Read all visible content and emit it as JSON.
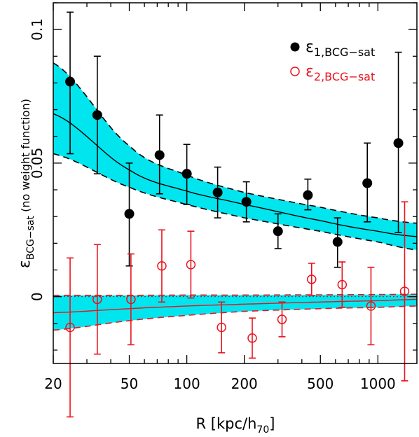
{
  "chart_data": {
    "type": "scatter",
    "xlabel_main": "R [kpc/h",
    "xlabel_sub": "70",
    "xlabel_end": "]",
    "ylabel_main": "ε",
    "ylabel_sub": "BCG−sat",
    "ylabel_end": " (no weight function)",
    "x_scale": "log",
    "xlim": [
      20,
      1600
    ],
    "ylim": [
      -0.025,
      0.11
    ],
    "x_ticks": [
      20,
      50,
      100,
      200,
      500,
      1000
    ],
    "x_tick_labels": [
      "20",
      "50",
      "100",
      "200",
      "500",
      "1000"
    ],
    "y_ticks": [
      0,
      0.05,
      0.1
    ],
    "y_tick_labels": [
      "0",
      "0.05",
      "0.1"
    ],
    "legend_position": "top-right",
    "series": [
      {
        "name": "ε",
        "name_sub": "1,BCG−sat",
        "color": "#000000",
        "marker": "filled-circle",
        "x": [
          24.5,
          34,
          50,
          72,
          100,
          145,
          205,
          300,
          430,
          615,
          880,
          1280
        ],
        "y": [
          0.0805,
          0.068,
          0.031,
          0.053,
          0.046,
          0.039,
          0.0355,
          0.0245,
          0.038,
          0.0205,
          0.0425,
          0.0575
        ],
        "err_low": [
          0.027,
          0.022,
          0.0195,
          0.0145,
          0.0115,
          0.0095,
          0.0075,
          0.0065,
          0.0055,
          0.0095,
          0.0145,
          0.0335
        ],
        "err_high": [
          0.026,
          0.022,
          0.019,
          0.015,
          0.011,
          0.0095,
          0.0075,
          0.0065,
          0.006,
          0.009,
          0.015,
          0.034
        ]
      },
      {
        "name": "ε",
        "name_sub": "2,BCG−sat",
        "color": "#e8141e",
        "marker": "open-circle",
        "x": [
          24.5,
          34,
          51,
          74,
          105,
          152,
          220,
          315,
          450,
          650,
          920,
          1380
        ],
        "y": [
          -0.0115,
          -0.001,
          -0.001,
          0.0115,
          0.012,
          -0.0115,
          -0.0155,
          -0.0085,
          0.0065,
          0.0045,
          -0.0035,
          0.002
        ],
        "err_low": [
          0.0335,
          0.0205,
          0.017,
          0.0135,
          0.0125,
          0.0095,
          0.0075,
          0.0065,
          0.006,
          0.0085,
          0.0145,
          0.0335
        ],
        "err_high": [
          0.026,
          0.0205,
          0.017,
          0.0135,
          0.0125,
          0.0095,
          0.0075,
          0.0065,
          0.006,
          0.0085,
          0.0145,
          0.0335
        ]
      }
    ],
    "fit_1": {
      "color": "#000000",
      "band_color": "#00e5ee",
      "x": [
        20,
        50,
        100,
        200,
        500,
        1000,
        1600
      ],
      "center": [
        0.0685,
        0.0475,
        0.0395,
        0.0345,
        0.0285,
        0.0245,
        0.0225
      ],
      "upper": [
        0.0875,
        0.0565,
        0.0455,
        0.039,
        0.0335,
        0.0295,
        0.0275
      ],
      "lower": [
        0.0535,
        0.041,
        0.0345,
        0.0295,
        0.0245,
        0.0205,
        0.0175
      ]
    },
    "fit_2": {
      "color": "#e8141e",
      "band_color": "#00e5ee",
      "x": [
        20,
        50,
        100,
        200,
        500,
        1000,
        1600
      ],
      "center": [
        -0.006,
        -0.0045,
        -0.0035,
        -0.0028,
        -0.002,
        -0.0015,
        -0.001
      ],
      "upper": [
        0.0005,
        0.0005,
        0.0006,
        0.0006,
        0.0007,
        0.0008,
        0.0009
      ],
      "lower": [
        -0.0125,
        -0.009,
        -0.007,
        -0.0055,
        -0.0045,
        -0.004,
        -0.0035
      ]
    },
    "zero_line": 0
  }
}
